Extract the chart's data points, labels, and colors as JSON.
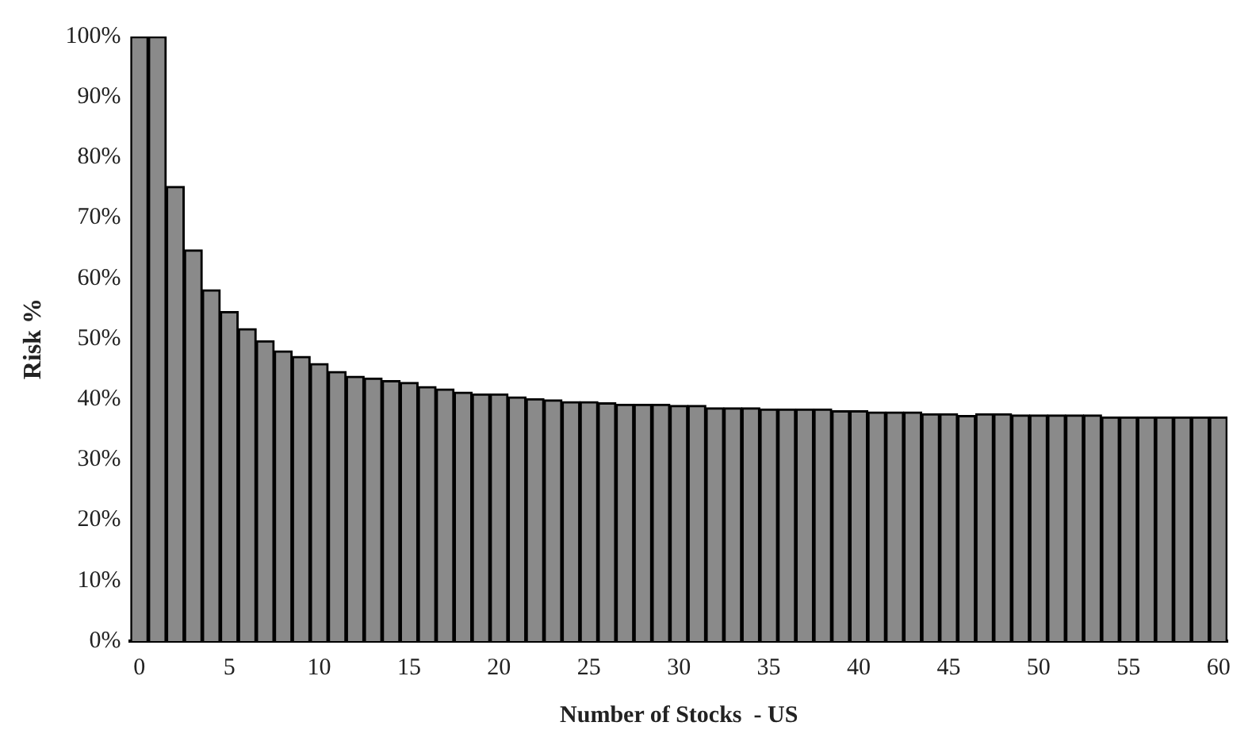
{
  "chart_data": {
    "type": "bar",
    "xlabel": "Number of Stocks  - US",
    "ylabel": "Risk %",
    "categories": [
      "0",
      null,
      null,
      null,
      null,
      "5",
      null,
      null,
      null,
      null,
      "10",
      null,
      null,
      null,
      null,
      "15",
      null,
      null,
      null,
      null,
      "20",
      null,
      null,
      null,
      null,
      "25",
      null,
      null,
      null,
      null,
      "30",
      null,
      null,
      null,
      null,
      "35",
      null,
      null,
      null,
      null,
      "40",
      null,
      null,
      null,
      null,
      "45",
      null,
      null,
      null,
      null,
      "50",
      null,
      null,
      null,
      null,
      "55",
      null,
      null,
      null,
      null,
      "60"
    ],
    "values": [
      100,
      100,
      75.2,
      64.7,
      58.1,
      54.5,
      51.7,
      49.7,
      48,
      47.1,
      45.9,
      44.6,
      43.8,
      43.5,
      43.1,
      42.8,
      42.1,
      41.7,
      41.2,
      40.9,
      40.9,
      40.4,
      40.1,
      39.9,
      39.6,
      39.6,
      39.4,
      39.2,
      39.2,
      39.2,
      39,
      39,
      38.6,
      38.6,
      38.6,
      38.4,
      38.4,
      38.4,
      38.4,
      38.1,
      38.1,
      37.9,
      37.9,
      37.9,
      37.6,
      37.6,
      37.3,
      37.6,
      37.6,
      37.4,
      37.4,
      37.4,
      37.4,
      37.4,
      37.1,
      37.1,
      37.1,
      37.1,
      37.1,
      37.1,
      37.1
    ],
    "color": "#8a8a8a",
    "ylim": [
      0,
      100
    ],
    "yticks": [
      {
        "value": 0,
        "label": "0%"
      },
      {
        "value": 10,
        "label": "10%"
      },
      {
        "value": 20,
        "label": "20%"
      },
      {
        "value": 30,
        "label": "30%"
      },
      {
        "value": 40,
        "label": "40%"
      },
      {
        "value": 50,
        "label": "50%"
      },
      {
        "value": 60,
        "label": "60%"
      },
      {
        "value": 70,
        "label": "70%"
      },
      {
        "value": 80,
        "label": "80%"
      },
      {
        "value": 90,
        "label": "90%"
      },
      {
        "value": 100,
        "label": "100%"
      }
    ],
    "grid": false,
    "legend": false
  }
}
